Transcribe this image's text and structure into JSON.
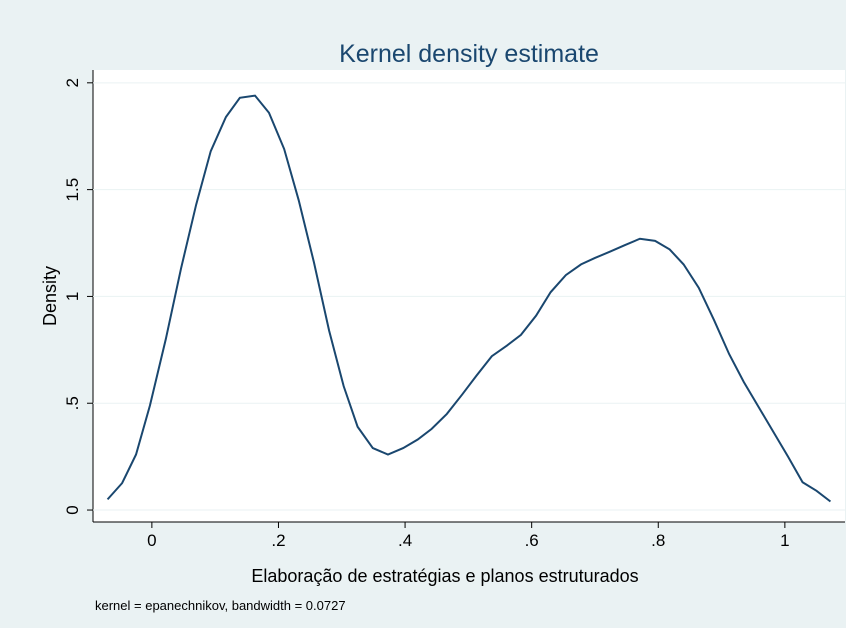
{
  "chart_data": {
    "type": "line",
    "title": "Kernel density estimate",
    "xlabel": "Elaboração de estratégias e planos estruturados",
    "ylabel": "Density",
    "note": "kernel = epanechnikov, bandwidth = 0.0727",
    "x": [
      -0.07,
      -0.047,
      -0.025,
      -0.003,
      0.022,
      0.046,
      0.07,
      0.093,
      0.117,
      0.139,
      0.163,
      0.185,
      0.209,
      0.232,
      0.256,
      0.28,
      0.303,
      0.325,
      0.349,
      0.373,
      0.397,
      0.42,
      0.442,
      0.466,
      0.49,
      0.513,
      0.537,
      0.561,
      0.583,
      0.607,
      0.63,
      0.654,
      0.678,
      0.7,
      0.724,
      0.747,
      0.771,
      0.795,
      0.818,
      0.84,
      0.864,
      0.888,
      0.912,
      0.935,
      0.957,
      0.981,
      1.005,
      1.028,
      1.05,
      1.072
    ],
    "series": [
      {
        "name": "Density",
        "color": "#1a476f",
        "values": [
          0.05,
          0.126,
          0.26,
          0.49,
          0.8,
          1.13,
          1.43,
          1.68,
          1.84,
          1.93,
          1.94,
          1.86,
          1.69,
          1.45,
          1.16,
          0.84,
          0.58,
          0.39,
          0.29,
          0.26,
          0.29,
          0.33,
          0.38,
          0.45,
          0.54,
          0.63,
          0.72,
          0.77,
          0.82,
          0.91,
          1.02,
          1.1,
          1.15,
          1.18,
          1.21,
          1.24,
          1.27,
          1.26,
          1.22,
          1.15,
          1.04,
          0.89,
          0.73,
          0.6,
          0.49,
          0.37,
          0.25,
          0.13,
          0.09,
          0.04
        ]
      }
    ],
    "xlim": [
      -0.093,
      1.095
    ],
    "ylim": [
      -0.056,
      2.06
    ],
    "xticks": [
      0,
      {
        "value": 0.2,
        "label": ".2"
      },
      {
        "value": 0.4,
        "label": ".4"
      },
      {
        "value": 0.6,
        "label": ".6"
      },
      {
        "value": 0.8,
        "label": ".8"
      },
      1
    ],
    "yticks": [
      0,
      {
        "value": 0.5,
        "label": ".5"
      },
      1,
      1.5,
      2
    ],
    "grid": true
  }
}
